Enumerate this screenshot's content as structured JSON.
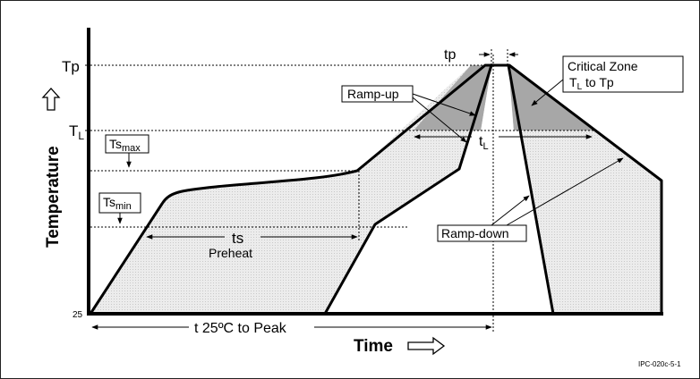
{
  "figure": {
    "axes": {
      "y_label": "Temperature",
      "x_label": "Time",
      "y_ticks": {
        "tp": "Tp",
        "tl_main": "T",
        "tl_sub": "L",
        "origin": "25"
      }
    },
    "labels": {
      "tp": "tp",
      "critical_zone_line1": "Critical Zone",
      "critical_zone_line2_a": "T",
      "critical_zone_line2_sub": "L",
      "critical_zone_line2_b": " to Tp",
      "ramp_up": "Ramp-up",
      "ramp_down": "Ramp-down",
      "ts_max_main": "Ts",
      "ts_max_sub": "max",
      "ts_min_main": "Ts",
      "ts_min_sub": "min",
      "ts": "ts",
      "preheat": "Preheat",
      "tl_main": "t",
      "tl_sub": "L",
      "time_to_peak": "t  25ºC to Peak",
      "figure_id": "IPC-020c-5-1"
    },
    "colors": {
      "line": "#000000",
      "light_fill": "#e6e6e6",
      "critical_fill": "#a7a7a7",
      "background": "#ffffff"
    }
  }
}
